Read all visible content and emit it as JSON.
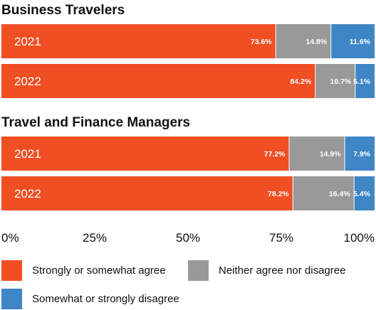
{
  "chart_data": {
    "type": "bar",
    "orientation": "horizontal",
    "stacked": true,
    "percent_suffix": "%",
    "groups": [
      {
        "title": "Business Travelers",
        "bars": [
          {
            "label": "2021",
            "values": [
              73.6,
              14.8,
              11.6
            ]
          },
          {
            "label": "2022",
            "values": [
              84.2,
              10.7,
              5.1
            ]
          }
        ]
      },
      {
        "title": "Travel and Finance Managers",
        "bars": [
          {
            "label": "2021",
            "values": [
              77.2,
              14.9,
              7.9
            ]
          },
          {
            "label": "2022",
            "values": [
              78.2,
              16.4,
              5.4
            ]
          }
        ]
      }
    ],
    "series": [
      {
        "name": "Strongly or somewhat agree",
        "color": "#F04E23"
      },
      {
        "name": "Neither agree nor disagree",
        "color": "#999999"
      },
      {
        "name": "Somewhat or strongly disagree",
        "color": "#3E86C6"
      }
    ],
    "x_ticks": [
      "0%",
      "25%",
      "50%",
      "75%",
      "100%"
    ],
    "xlim": [
      0,
      100
    ],
    "grid": false,
    "legend_position": "bottom"
  }
}
